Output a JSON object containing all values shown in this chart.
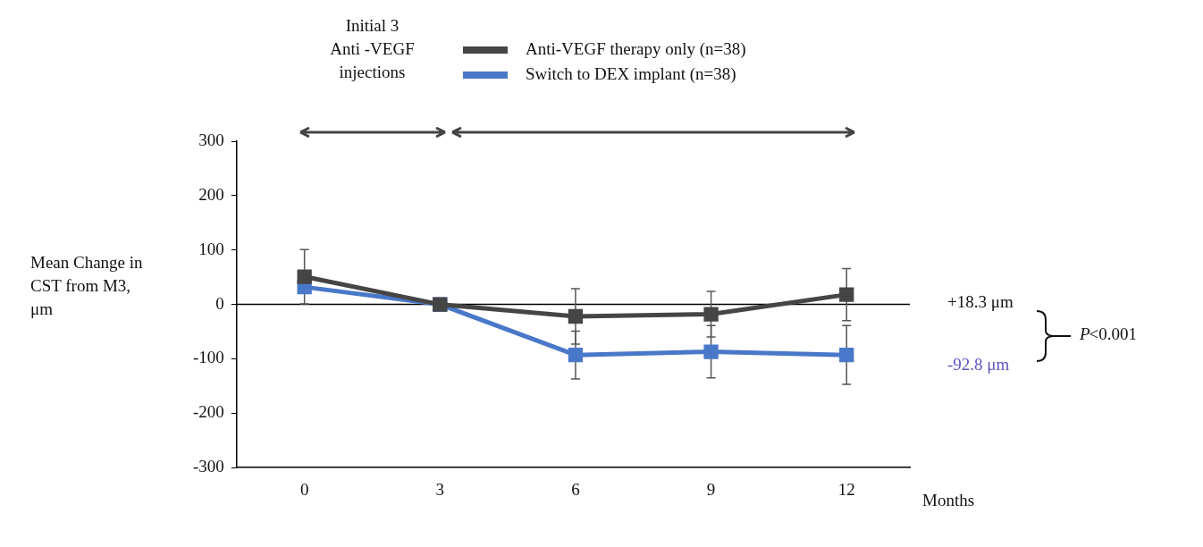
{
  "chart_data": {
    "type": "line",
    "xlabel": "Months",
    "ylabel": "Mean Change in CST from M3, μm",
    "x": [
      0,
      3,
      6,
      9,
      12
    ],
    "xlim": [
      -1.5,
      13.4
    ],
    "xticks": [
      0,
      3,
      6,
      9,
      12
    ],
    "ylim": [
      -300,
      300
    ],
    "yticks": [
      -300,
      -200,
      -100,
      0,
      100,
      200,
      300
    ],
    "series": [
      {
        "name": "Anti-VEGF therapy only (n=38)",
        "color": "#454545",
        "values": [
          51,
          0,
          -22,
          -18,
          18
        ],
        "errors": [
          50,
          null,
          51,
          42,
          48
        ]
      },
      {
        "name": "Switch to DEX implant (n=38)",
        "color": "#4a78c8",
        "values": [
          32,
          0,
          -93,
          -87,
          -93
        ],
        "errors": [
          null,
          null,
          44,
          48,
          54
        ]
      }
    ],
    "ref_lines": [
      {
        "axis": "y",
        "value": 0,
        "color": "#000000"
      }
    ],
    "annotations": [
      "Initial 3\nAnti -VEGF\ninjections",
      "+18.3 μm",
      "-92.8 μm",
      "P<0.001"
    ],
    "marker": "square",
    "line_style": "solid",
    "legend": "top",
    "grid": false
  }
}
